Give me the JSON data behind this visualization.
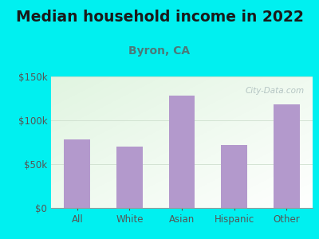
{
  "title": "Median household income in 2022",
  "subtitle": "Byron, CA",
  "categories": [
    "All",
    "White",
    "Asian",
    "Hispanic",
    "Other"
  ],
  "values": [
    78000,
    70000,
    128000,
    72000,
    118000
  ],
  "bar_color": "#b399cc",
  "title_color": "#1a1a1a",
  "subtitle_color": "#4a7a7a",
  "tick_color": "#555555",
  "bg_outer": "#00f0f0",
  "ylim": [
    0,
    150000
  ],
  "yticks": [
    0,
    50000,
    100000,
    150000
  ],
  "ytick_labels": [
    "$0",
    "$50k",
    "$100k",
    "$150k"
  ],
  "watermark": "City-Data.com",
  "title_fontsize": 13.5,
  "subtitle_fontsize": 10,
  "tick_fontsize": 8.5
}
